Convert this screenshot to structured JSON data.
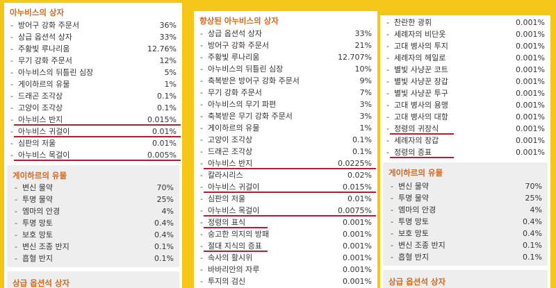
{
  "panel1": {
    "title": "아누비스의 상자",
    "rows": [
      {
        "label": "방어구 강화 주문서",
        "value": "36%"
      },
      {
        "label": "상급 옵션석 상자",
        "value": "33%"
      },
      {
        "label": "주황빛 루나리움",
        "value": "12.76%"
      },
      {
        "label": "무기 강화 주문서",
        "value": "12%"
      },
      {
        "label": "아누비스의 뒤틀린 심장",
        "value": "5%"
      },
      {
        "label": "게이하르의 유물",
        "value": "1%"
      },
      {
        "label": "드래곤 조각상",
        "value": "0.1%"
      },
      {
        "label": "고양이 조각상",
        "value": "0.1%"
      },
      {
        "label": "아누비스 반지",
        "value": "0.015%"
      },
      {
        "label": "아누비스 귀걸이",
        "value": "0.01%"
      },
      {
        "label": "심판의 저울",
        "value": "0.01%"
      },
      {
        "label": "아누비스 목걸이",
        "value": "0.005%"
      }
    ],
    "sub_box": {
      "title": "게이하르의 유물",
      "rows": [
        {
          "label": "변신 물약",
          "value": "70%"
        },
        {
          "label": "투명 물약",
          "value": "25%"
        },
        {
          "label": "엠마의 안경",
          "value": "4%"
        },
        {
          "label": "투명 망토",
          "value": "0.4%"
        },
        {
          "label": "보호 망토",
          "value": "0.4%"
        },
        {
          "label": "변신 조종 반지",
          "value": "0.1%"
        },
        {
          "label": "흡혈 반지",
          "value": "0.1%"
        }
      ]
    },
    "bottom_box": {
      "title": "상급 옵션석 상자"
    }
  },
  "panel2": {
    "title": "향상된 아누비스의 상자",
    "rows": [
      {
        "label": "상급 옵션석 상자",
        "value": "33%"
      },
      {
        "label": "방어구 강화 주문서",
        "value": "21%"
      },
      {
        "label": "주황빛 루나리움",
        "value": "12.707%"
      },
      {
        "label": "아누비스의 뒤틀린 심장",
        "value": "10%"
      },
      {
        "label": "축복받은 방어구 강화 주문서",
        "value": "9%"
      },
      {
        "label": "무기 강화 주문서",
        "value": "7%"
      },
      {
        "label": "아누비스의 무기 파편",
        "value": "3%"
      },
      {
        "label": "축복받은 무기 강화 주문서",
        "value": "3%"
      },
      {
        "label": "게이하르의 유물",
        "value": "1%"
      },
      {
        "label": "고양이 조각상",
        "value": "0.1%"
      },
      {
        "label": "드래곤 조각상",
        "value": "0.1%"
      },
      {
        "label": "아누비스 반지",
        "value": "0.0225%"
      },
      {
        "label": "칼라시리스",
        "value": "0.02%"
      },
      {
        "label": "아누비스 귀걸이",
        "value": "0.015%"
      },
      {
        "label": "심판의 저울",
        "value": "0.01%"
      },
      {
        "label": "아누비스 목걸이",
        "value": "0.0075%"
      },
      {
        "label": "정령의 표식",
        "value": "0.001%"
      },
      {
        "label": "숭고한 의지의 방패",
        "value": "0.001%"
      },
      {
        "label": "절대 지식의 증표",
        "value": "0.001%"
      },
      {
        "label": "속사의 활시위",
        "value": "0.001%"
      },
      {
        "label": "바바리안의 자루",
        "value": "0.001%"
      },
      {
        "label": "투지의 검신",
        "value": "0.001%"
      }
    ]
  },
  "panel3": {
    "rows": [
      {
        "label": "찬란한 광휘",
        "value": "0.001%"
      },
      {
        "label": "세례자의 비단옷",
        "value": "0.001%"
      },
      {
        "label": "고대 병사의 투지",
        "value": "0.001%"
      },
      {
        "label": "세례자의 헤일로",
        "value": "0.001%"
      },
      {
        "label": "별빛 사냥꾼 코트",
        "value": "0.001%"
      },
      {
        "label": "별빛 사냥꾼 장갑",
        "value": "0.001%"
      },
      {
        "label": "별빛 사냥꾼 투구",
        "value": "0.001%"
      },
      {
        "label": "고대 병사의 용맹",
        "value": "0.001%"
      },
      {
        "label": "고대 병사의 대항",
        "value": "0.001%"
      },
      {
        "label": "정령의 귀장식",
        "value": "0.001%"
      },
      {
        "label": "세례자의 장갑",
        "value": "0.001%"
      },
      {
        "label": "정령의 증표",
        "value": "0.001%"
      }
    ],
    "sub_box": {
      "title": "게이하르의 유물",
      "rows": [
        {
          "label": "변신 물약",
          "value": "70%"
        },
        {
          "label": "투명 물약",
          "value": "25%"
        },
        {
          "label": "엠마의 안경",
          "value": "4%"
        },
        {
          "label": "투명 망토",
          "value": "0.4%"
        },
        {
          "label": "보호 망토",
          "value": "0.4%"
        },
        {
          "label": "변신 조종 반지",
          "value": "0.1%"
        },
        {
          "label": "흡혈 반지",
          "value": "0.1%"
        }
      ]
    },
    "bottom_box": {
      "title": "상급 옵션석 상자"
    }
  },
  "highlight_color": "#c0172c",
  "title_color": "#d2691e"
}
